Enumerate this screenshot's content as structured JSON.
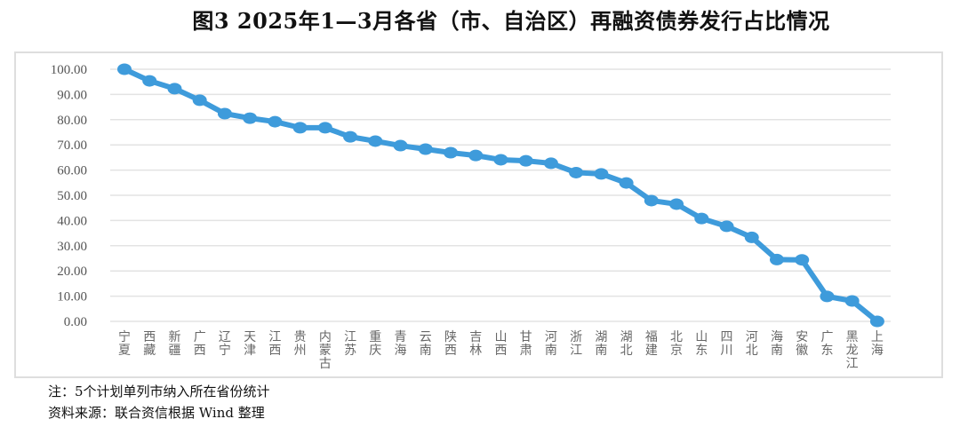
{
  "header": {
    "title": "图3 2025年1—3月各省（市、自治区）再融资债券发行占比情况"
  },
  "chart_data": {
    "type": "line",
    "title": "图3 2025年1—3月各省（市、自治区）再融资债券发行占比情况",
    "xlabel": "",
    "ylabel": "",
    "ylim": [
      0,
      100
    ],
    "yticks": [
      "0.00",
      "10.00",
      "20.00",
      "30.00",
      "40.00",
      "50.00",
      "60.00",
      "70.00",
      "80.00",
      "90.00",
      "100.00"
    ],
    "grid": true,
    "legend": null,
    "color": "#3e9bdb",
    "categories": [
      "宁夏",
      "西藏",
      "新疆",
      "广西",
      "辽宁",
      "天津",
      "江西",
      "贵州",
      "内蒙古",
      "江苏",
      "重庆",
      "青海",
      "云南",
      "陕西",
      "吉林",
      "山西",
      "甘肃",
      "河南",
      "浙江",
      "湖南",
      "湖北",
      "福建",
      "北京",
      "山东",
      "四川",
      "河北",
      "海南",
      "安徽",
      "广东",
      "黑龙江",
      "上海"
    ],
    "series": [
      {
        "name": "再融资债券发行占比",
        "values": [
          100.0,
          95.4,
          92.3,
          87.7,
          82.4,
          80.6,
          79.2,
          76.8,
          76.8,
          73.2,
          71.5,
          69.7,
          68.3,
          66.9,
          65.8,
          64.1,
          63.7,
          62.7,
          59.0,
          58.5,
          54.9,
          47.9,
          46.5,
          40.8,
          37.7,
          33.3,
          24.5,
          24.4,
          9.9,
          8.1,
          0.0
        ]
      }
    ]
  },
  "footer": {
    "note": "注：5个计划单列市纳入所在省份统计",
    "source": "资料来源：联合资信根据 Wind 整理"
  }
}
